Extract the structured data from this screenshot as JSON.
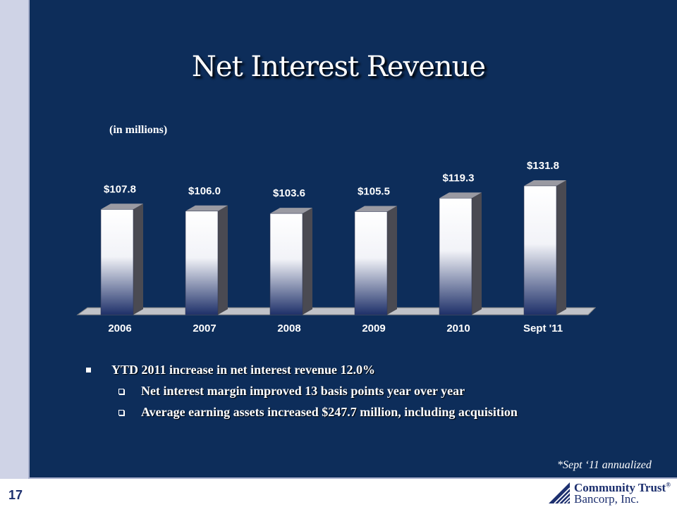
{
  "slide": {
    "title": "Net Interest Revenue",
    "units_note": "(in millions)",
    "page_number": "17",
    "footnote": "*Sept ‘11 annualized"
  },
  "bullets": {
    "main": "YTD 2011 increase in net interest revenue 12.0%",
    "sub": [
      "Net interest margin improved 13 basis points year over year",
      "Average earning assets increased $247.7 million, including acquisition"
    ]
  },
  "logo": {
    "line1": "Community Trust",
    "registered_mark": "®",
    "line2": "Bancorp, Inc.",
    "mark_icon": "triangle-logo-icon"
  },
  "chart_data": {
    "type": "bar",
    "categories": [
      "2006",
      "2007",
      "2008",
      "2009",
      "2010",
      "Sept '11"
    ],
    "values": [
      107.8,
      106.0,
      103.6,
      105.5,
      119.3,
      131.8
    ],
    "value_labels": [
      "$107.8",
      "$106.0",
      "$103.6",
      "$105.5",
      "$119.3",
      "$131.8"
    ],
    "ylabel": "(in millions)",
    "ylim": [
      0,
      135
    ],
    "grid": false,
    "legend": "none"
  },
  "colors": {
    "background": "#0d2d5a",
    "bar_top": "#ffffff",
    "bar_bottom": "#1e3069",
    "text": "#ffffff",
    "brand": "#1c2f6e"
  }
}
